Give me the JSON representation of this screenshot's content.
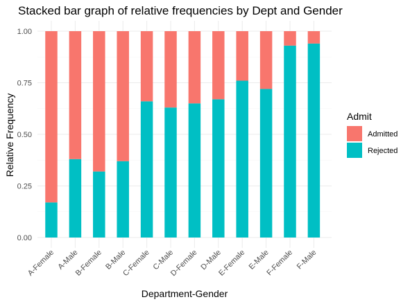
{
  "chart_data": {
    "type": "bar",
    "stacked": true,
    "title": "Stacked bar graph of relative frequencies by Dept and Gender",
    "xlabel": "Department-Gender",
    "ylabel": "Relative Frequency",
    "ylim": [
      0,
      1
    ],
    "yticks": [
      "0.00",
      "0.25",
      "0.50",
      "0.75",
      "1.00"
    ],
    "grid": true,
    "legend": {
      "title": "Admit",
      "position": "right"
    },
    "categories": [
      "A-Female",
      "A-Male",
      "B-Female",
      "B-Male",
      "C-Female",
      "C-Male",
      "D-Female",
      "D-Male",
      "E-Female",
      "E-Male",
      "F-Female",
      "F-Male"
    ],
    "series": [
      {
        "name": "Admitted",
        "color": "#F8766D",
        "values": [
          0.83,
          0.62,
          0.68,
          0.63,
          0.34,
          0.37,
          0.35,
          0.33,
          0.24,
          0.28,
          0.07,
          0.06
        ]
      },
      {
        "name": "Rejected",
        "color": "#00BFC4",
        "values": [
          0.17,
          0.38,
          0.32,
          0.37,
          0.66,
          0.63,
          0.65,
          0.67,
          0.76,
          0.72,
          0.93,
          0.94
        ]
      }
    ]
  }
}
